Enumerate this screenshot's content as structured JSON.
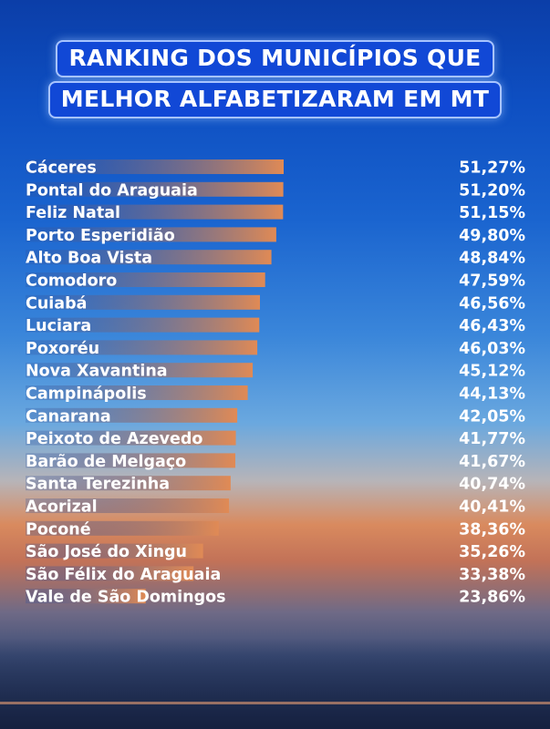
{
  "title_lines": [
    "RANKING DOS MUNICÍPIOS QUE",
    "MELHOR ALFABETIZARAM EM MT"
  ],
  "colors": {
    "bar_start": "#2b4f9e",
    "bar_end": "#e08a55",
    "title_bg": "#1148d6",
    "text": "#ffffff"
  },
  "chart_data": {
    "type": "bar",
    "orientation": "horizontal",
    "categories": [
      "Cáceres",
      "Pontal do Araguaia",
      "Feliz Natal",
      "Porto Esperidião",
      "Alto Boa Vista",
      "Comodoro",
      "Cuiabá",
      "Luciara",
      "Poxoréu",
      "Nova Xavantina",
      "Campinápolis",
      "Canarana",
      "Peixoto de Azevedo",
      "Barão de Melgaço",
      "Santa Terezinha",
      "Acorizal",
      "Poconé",
      "São José do Xingu",
      "São Félix do Araguaia",
      "Vale de São Domingos"
    ],
    "values": [
      51.27,
      51.2,
      51.15,
      49.8,
      48.84,
      47.59,
      46.56,
      46.43,
      46.03,
      45.12,
      44.13,
      42.05,
      41.77,
      41.67,
      40.74,
      40.41,
      38.36,
      35.26,
      33.38,
      23.86
    ],
    "value_labels": [
      "51,27%",
      "51,20%",
      "51,15%",
      "49,80%",
      "48,84%",
      "47,59%",
      "46,56%",
      "46,43%",
      "46,03%",
      "45,12%",
      "44,13%",
      "42,05%",
      "41,77%",
      "41,67%",
      "40,74%",
      "40,41%",
      "38,36%",
      "35,26%",
      "33,38%",
      "23,86%"
    ],
    "title": "",
    "xlabel": "",
    "ylabel": "",
    "grid": false
  }
}
